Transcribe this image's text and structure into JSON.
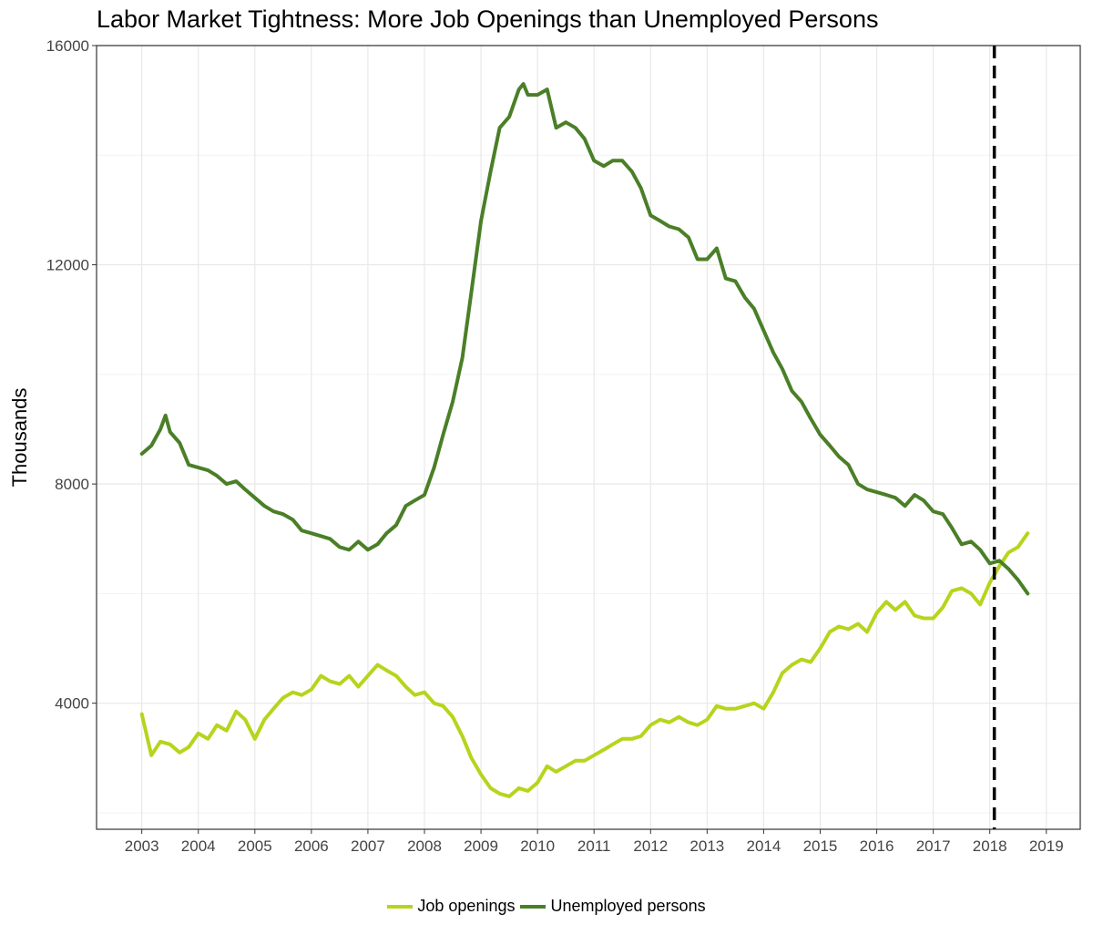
{
  "chart_data": {
    "type": "line",
    "title": "Labor Market Tightness: More Job Openings than Unemployed Persons",
    "xlabel": "",
    "ylabel": "Thousands",
    "xlim": [
      2002.2,
      2019.6
    ],
    "ylim": [
      1700,
      16000
    ],
    "x_ticks": [
      2003,
      2004,
      2005,
      2006,
      2007,
      2008,
      2009,
      2010,
      2011,
      2012,
      2013,
      2014,
      2015,
      2016,
      2017,
      2018,
      2019
    ],
    "y_ticks": [
      4000,
      8000,
      12000,
      16000
    ],
    "grid": true,
    "legend_position": "bottom",
    "reference_line": {
      "x": 2018.08,
      "style": "dashed",
      "color": "#000000"
    },
    "series": [
      {
        "name": "Job openings",
        "color": "#b7d41c",
        "x": [
          2003.0,
          2003.17,
          2003.33,
          2003.5,
          2003.67,
          2003.83,
          2004.0,
          2004.17,
          2004.33,
          2004.5,
          2004.67,
          2004.83,
          2005.0,
          2005.17,
          2005.33,
          2005.5,
          2005.67,
          2005.83,
          2006.0,
          2006.17,
          2006.33,
          2006.5,
          2006.67,
          2006.83,
          2007.0,
          2007.17,
          2007.33,
          2007.5,
          2007.67,
          2007.83,
          2008.0,
          2008.17,
          2008.33,
          2008.5,
          2008.67,
          2008.83,
          2009.0,
          2009.17,
          2009.33,
          2009.5,
          2009.67,
          2009.83,
          2010.0,
          2010.17,
          2010.33,
          2010.5,
          2010.67,
          2010.83,
          2011.0,
          2011.17,
          2011.33,
          2011.5,
          2011.67,
          2011.83,
          2012.0,
          2012.17,
          2012.33,
          2012.5,
          2012.67,
          2012.83,
          2013.0,
          2013.17,
          2013.33,
          2013.5,
          2013.67,
          2013.83,
          2014.0,
          2014.17,
          2014.33,
          2014.5,
          2014.67,
          2014.83,
          2015.0,
          2015.17,
          2015.33,
          2015.5,
          2015.67,
          2015.83,
          2016.0,
          2016.17,
          2016.33,
          2016.5,
          2016.67,
          2016.83,
          2017.0,
          2017.17,
          2017.33,
          2017.5,
          2017.67,
          2017.83,
          2018.0,
          2018.17,
          2018.33,
          2018.5,
          2018.67
        ],
        "values": [
          3800,
          3050,
          3300,
          3250,
          3100,
          3200,
          3450,
          3350,
          3600,
          3500,
          3850,
          3700,
          3350,
          3700,
          3900,
          4100,
          4200,
          4150,
          4250,
          4500,
          4400,
          4350,
          4500,
          4300,
          4500,
          4700,
          4600,
          4500,
          4300,
          4150,
          4200,
          4000,
          3950,
          3750,
          3400,
          3000,
          2700,
          2450,
          2350,
          2300,
          2450,
          2400,
          2550,
          2850,
          2750,
          2850,
          2950,
          2950,
          3050,
          3150,
          3250,
          3350,
          3350,
          3400,
          3600,
          3700,
          3650,
          3750,
          3650,
          3600,
          3700,
          3950,
          3900,
          3900,
          3950,
          4000,
          3900,
          4200,
          4550,
          4700,
          4800,
          4750,
          5000,
          5300,
          5400,
          5350,
          5450,
          5300,
          5650,
          5850,
          5700,
          5850,
          5600,
          5550,
          5550,
          5750,
          6050,
          6100,
          6000,
          5800,
          6200,
          6500,
          6750,
          6850,
          7100
        ]
      },
      {
        "name": "Unemployed persons",
        "color": "#4a7f27",
        "x": [
          2003.0,
          2003.17,
          2003.33,
          2003.42,
          2003.5,
          2003.67,
          2003.83,
          2004.0,
          2004.17,
          2004.33,
          2004.5,
          2004.67,
          2004.83,
          2005.0,
          2005.17,
          2005.33,
          2005.5,
          2005.67,
          2005.83,
          2006.0,
          2006.17,
          2006.33,
          2006.5,
          2006.67,
          2006.83,
          2007.0,
          2007.17,
          2007.33,
          2007.5,
          2007.67,
          2007.83,
          2008.0,
          2008.17,
          2008.33,
          2008.5,
          2008.67,
          2008.83,
          2009.0,
          2009.17,
          2009.33,
          2009.5,
          2009.67,
          2009.75,
          2009.83,
          2010.0,
          2010.17,
          2010.33,
          2010.5,
          2010.67,
          2010.83,
          2011.0,
          2011.17,
          2011.33,
          2011.5,
          2011.67,
          2011.83,
          2012.0,
          2012.17,
          2012.33,
          2012.5,
          2012.67,
          2012.83,
          2013.0,
          2013.17,
          2013.33,
          2013.5,
          2013.67,
          2013.83,
          2014.0,
          2014.17,
          2014.33,
          2014.5,
          2014.67,
          2014.83,
          2015.0,
          2015.17,
          2015.33,
          2015.5,
          2015.67,
          2015.83,
          2016.0,
          2016.17,
          2016.33,
          2016.5,
          2016.67,
          2016.83,
          2017.0,
          2017.17,
          2017.33,
          2017.5,
          2017.67,
          2017.83,
          2018.0,
          2018.17,
          2018.33,
          2018.5,
          2018.67
        ],
        "values": [
          8550,
          8700,
          9000,
          9250,
          8950,
          8750,
          8350,
          8300,
          8250,
          8150,
          8000,
          8050,
          7900,
          7750,
          7600,
          7500,
          7450,
          7350,
          7150,
          7100,
          7050,
          7000,
          6850,
          6800,
          6950,
          6800,
          6900,
          7100,
          7250,
          7600,
          7700,
          7800,
          8300,
          8900,
          9500,
          10300,
          11500,
          12800,
          13700,
          14500,
          14700,
          15200,
          15300,
          15100,
          15100,
          15200,
          14500,
          14600,
          14500,
          14300,
          13900,
          13800,
          13900,
          13900,
          13700,
          13400,
          12900,
          12800,
          12700,
          12650,
          12500,
          12100,
          12100,
          12300,
          11750,
          11700,
          11400,
          11200,
          10800,
          10400,
          10100,
          9700,
          9500,
          9200,
          8900,
          8700,
          8500,
          8350,
          8000,
          7900,
          7850,
          7800,
          7750,
          7600,
          7800,
          7700,
          7500,
          7450,
          7200,
          6900,
          6950,
          6800,
          6550,
          6600,
          6450,
          6250,
          6000
        ]
      }
    ]
  }
}
